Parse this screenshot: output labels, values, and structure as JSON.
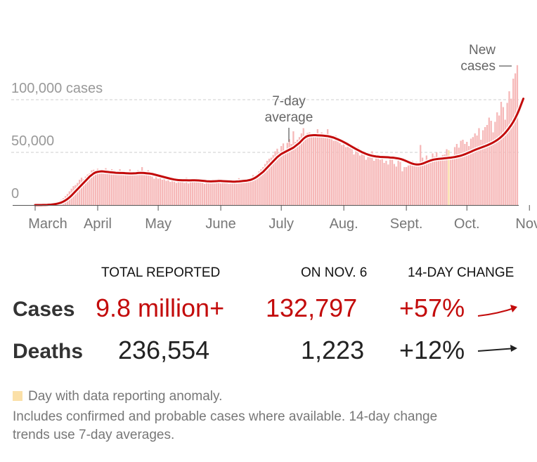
{
  "chart_data": {
    "type": "bar",
    "title": "",
    "xlabel": "",
    "ylabel": "",
    "ylim": [
      0,
      135000
    ],
    "y_ticks": [
      {
        "value": 0,
        "label": "0"
      },
      {
        "value": 50000,
        "label": "50,000"
      },
      {
        "value": 100000,
        "label": "100,000 cases"
      }
    ],
    "x_ticks": [
      "March",
      "April",
      "May",
      "June",
      "July",
      "Aug.",
      "Sept.",
      "Oct.",
      "Nov."
    ],
    "x_start": "2020-03-01",
    "series": [
      {
        "name": "New cases",
        "type": "bar",
        "values": [
          20,
          30,
          60,
          80,
          120,
          200,
          300,
          500,
          700,
          1200,
          1800,
          2800,
          3900,
          5000,
          6500,
          8500,
          10500,
          13000,
          15500,
          18000,
          19000,
          21000,
          24000,
          26000,
          24500,
          27000,
          29000,
          30000,
          33000,
          33500,
          32500,
          34500,
          30500,
          34000,
          32000,
          35000,
          30000,
          31000,
          34000,
          33000,
          29500,
          31500,
          34000,
          31000,
          32500,
          29000,
          31500,
          34000,
          29000,
          28500,
          31000,
          33000,
          30000,
          36000,
          31500,
          29000,
          33000,
          28500,
          27000,
          25000,
          29000,
          25000,
          27000,
          24000,
          26000,
          23000,
          24500,
          22000,
          25000,
          24000,
          21000,
          23500,
          22500,
          25000,
          21000,
          26000,
          20500,
          24500,
          23000,
          22000,
          25500,
          23500,
          22500,
          25000,
          20000,
          24000,
          22000,
          21500,
          24500,
          20500,
          23000,
          25000,
          20500,
          21500,
          24000,
          22000,
          20000,
          24500,
          22500,
          21000,
          23000,
          25500,
          23000,
          22500,
          24500,
          21500,
          23000,
          26000,
          28500,
          27000,
          29500,
          32000,
          34000,
          36000,
          39000,
          42000,
          44000,
          45000,
          47500,
          51000,
          53500,
          50000,
          56000,
          58500,
          52500,
          59000,
          62500,
          58000,
          70000,
          60000,
          62000,
          64500,
          68000,
          73000,
          66000,
          68500,
          69000,
          68000,
          65500,
          67500,
          72000,
          66000,
          69000,
          65000,
          67500,
          72000,
          64000,
          63000,
          61000,
          66000,
          63000,
          59000,
          57000,
          60500,
          55000,
          56000,
          58000,
          53500,
          48000,
          52000,
          55000,
          47000,
          51000,
          49000,
          43000,
          45500,
          46000,
          51000,
          42000,
          47000,
          45000,
          43000,
          45500,
          40000,
          42000,
          38500,
          46000,
          44500,
          39000,
          36500,
          43000,
          41000,
          32000,
          36000,
          36000,
          37500,
          40500,
          42000,
          37500,
          41000,
          38500,
          57000,
          45000,
          42000,
          47000,
          43000,
          40000,
          49000,
          46000,
          50000,
          43500,
          42000,
          47500,
          48000,
          53000,
          52000,
          46000,
          44000,
          55000,
          58000,
          54500,
          61000,
          62000,
          58000,
          60000,
          56000,
          63000,
          64500,
          68000,
          66000,
          73000,
          62000,
          71000,
          74000,
          76000,
          83000,
          80000,
          69000,
          79000,
          88000,
          85000,
          98000,
          93000,
          81000,
          97000,
          108000,
          101000,
          120000,
          125000,
          132797
        ]
      },
      {
        "name": "7-day average",
        "type": "line",
        "values": [
          10,
          15,
          25,
          40,
          60,
          110,
          180,
          300,
          450,
          650,
          900,
          1300,
          1800,
          2400,
          3300,
          4400,
          5700,
          7200,
          9000,
          11000,
          13000,
          15000,
          17000,
          19000,
          21000,
          23000,
          25000,
          27000,
          28500,
          30000,
          31000,
          31500,
          31800,
          32000,
          31800,
          31600,
          31400,
          31200,
          31000,
          30800,
          30600,
          30500,
          30400,
          30400,
          30300,
          30200,
          30100,
          30000,
          30000,
          30100,
          30200,
          30400,
          30500,
          30500,
          30400,
          30200,
          30000,
          29800,
          29500,
          29000,
          28500,
          28000,
          27500,
          27000,
          26500,
          26000,
          25500,
          25000,
          24600,
          24200,
          23900,
          23700,
          23600,
          23500,
          23500,
          23500,
          23400,
          23400,
          23500,
          23500,
          23400,
          23300,
          23200,
          23000,
          22800,
          22600,
          22500,
          22400,
          22500,
          22600,
          22700,
          22800,
          22800,
          22700,
          22600,
          22500,
          22400,
          22300,
          22200,
          22200,
          22300,
          22400,
          22600,
          22800,
          23000,
          23200,
          23600,
          24000,
          24800,
          25800,
          27000,
          28500,
          30000,
          31500,
          33500,
          35500,
          37500,
          39500,
          41500,
          43500,
          45500,
          47000,
          48500,
          49500,
          50500,
          51500,
          52500,
          53500,
          54500,
          56000,
          57500,
          59000,
          61000,
          63000,
          64500,
          65500,
          66000,
          66200,
          66300,
          66300,
          66200,
          66100,
          66000,
          65800,
          65600,
          65400,
          65000,
          64500,
          64000,
          63200,
          62400,
          61600,
          60700,
          59700,
          58700,
          57600,
          56500,
          55400,
          54300,
          53200,
          52200,
          51200,
          50200,
          49400,
          48600,
          47900,
          47300,
          46800,
          46400,
          46100,
          45900,
          45700,
          45600,
          45500,
          45400,
          45300,
          45100,
          45000,
          44800,
          44500,
          44200,
          43800,
          43200,
          42500,
          41700,
          40800,
          40000,
          39300,
          38800,
          38500,
          38500,
          38800,
          39300,
          40000,
          40800,
          41600,
          42300,
          42900,
          43300,
          43600,
          43800,
          44000,
          44200,
          44400,
          44600,
          44800,
          45000,
          45300,
          45600,
          46000,
          46400,
          46900,
          47500,
          48200,
          49000,
          49800,
          50600,
          51500,
          52300,
          53100,
          53800,
          54500,
          55200,
          55900,
          56700,
          57500,
          58400,
          59400,
          60500,
          61700,
          63100,
          64700,
          66500,
          68500,
          70800,
          73300,
          76000,
          79000,
          82500,
          86500,
          91000,
          96000,
          101000
        ]
      }
    ],
    "annotations": [
      {
        "text_lines": [
          "7-day",
          "average"
        ]
      },
      {
        "text_lines": [
          "New",
          "cases"
        ]
      }
    ],
    "legend": "none",
    "grid": true
  },
  "colors": {
    "bar": "#f6b8b8",
    "bar_anomaly": "#fbe0a8",
    "line": "#c30b0b",
    "red_text": "#c30b0b",
    "dark_text": "#222222",
    "trend_up": "#c30b0b",
    "trend_flat": "#222222"
  },
  "table": {
    "headers": {
      "total": "TOTAL REPORTED",
      "on_date": "ON NOV. 6",
      "change": "14-DAY CHANGE"
    },
    "rows": [
      {
        "label": "Cases",
        "total": "9.8 million+",
        "on_date": "132,797",
        "change": "+57%",
        "trend": "up"
      },
      {
        "label": "Deaths",
        "total": "236,554",
        "on_date": "1,223",
        "change": "+12%",
        "trend": "flat"
      }
    ]
  },
  "footnotes": {
    "anomaly": "Day with data reporting anomaly.",
    "note_line1": "Includes confirmed and probable cases where available. 14-day change",
    "note_line2": "trends use 7-day averages."
  }
}
